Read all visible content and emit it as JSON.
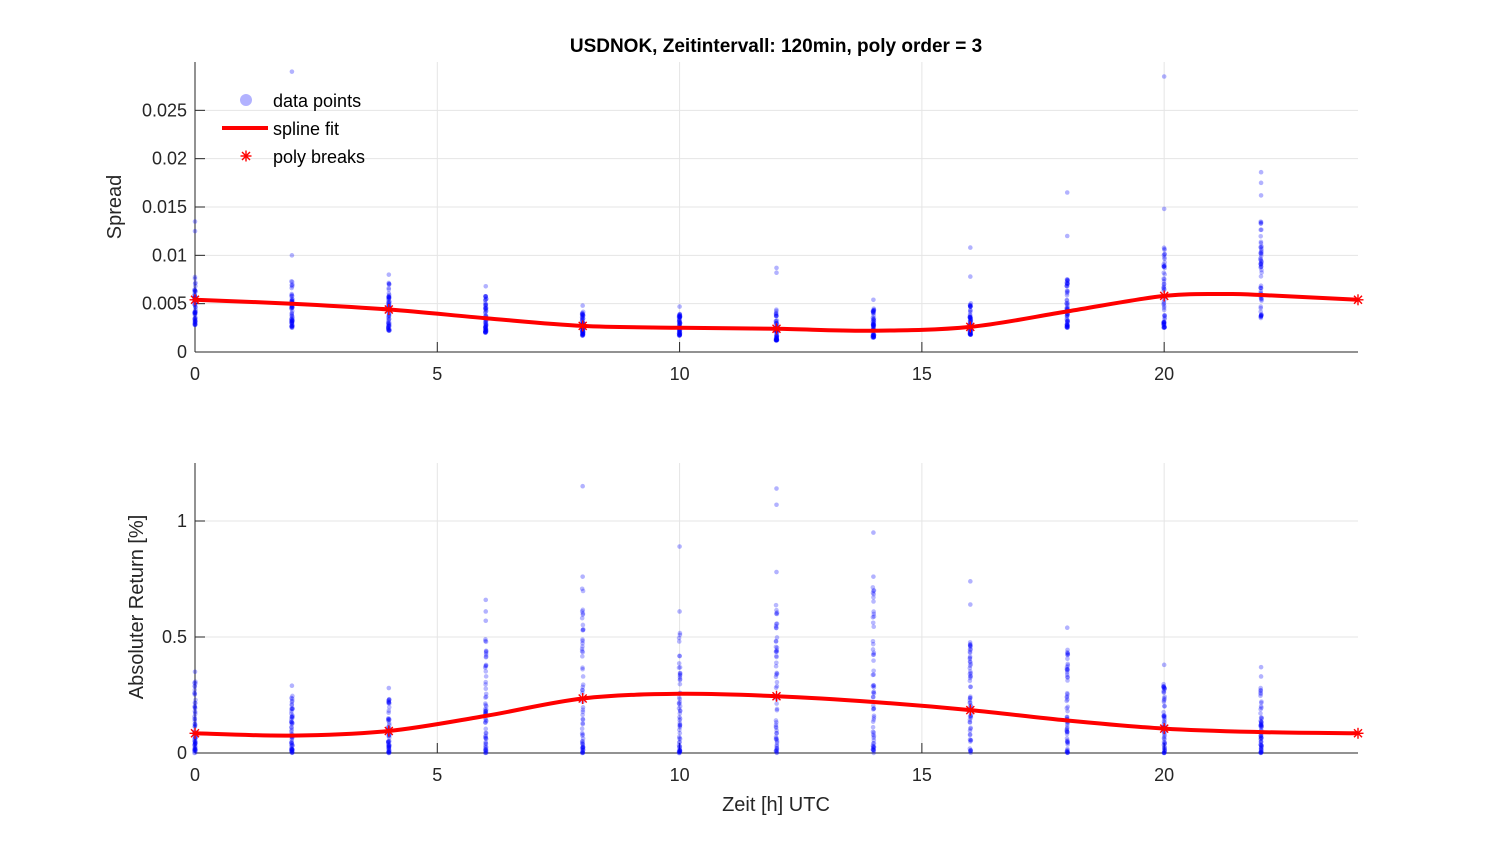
{
  "figure": {
    "title": "USDNOK, Zeitintervall: 120min, poly order = 3"
  },
  "legend": {
    "items": [
      "data points",
      "spline fit",
      "poly breaks"
    ]
  },
  "colors": {
    "points": "#0000ff",
    "fit": "#ff0000",
    "breaks": "#ff0000",
    "grid": "#e5e5e5",
    "axis": "#262626"
  },
  "chart_data": [
    {
      "type": "scatter",
      "title": "USDNOK, Zeitintervall: 120min, poly order = 3",
      "xlabel": "",
      "ylabel": "Spread",
      "xlim": [
        0,
        24
      ],
      "ylim": [
        0,
        0.03
      ],
      "xticks": [
        0,
        5,
        10,
        15,
        20
      ],
      "yticks": [
        0,
        0.005,
        0.01,
        0.015,
        0.02,
        0.025
      ],
      "ytick_labels": [
        "0",
        "0.005",
        "0.01",
        "0.015",
        "0.02",
        "0.025"
      ],
      "grid": true,
      "legend_position": "top-left",
      "series": [
        {
          "name": "data points",
          "type": "scatter",
          "clusters": [
            {
              "x": 0,
              "min": 0.0028,
              "max": 0.0078,
              "outliers": [
                0.0125,
                0.0135
              ]
            },
            {
              "x": 2,
              "min": 0.0025,
              "max": 0.0075,
              "outliers": [
                0.01,
                0.029
              ]
            },
            {
              "x": 4,
              "min": 0.0022,
              "max": 0.0072,
              "outliers": [
                0.008
              ]
            },
            {
              "x": 6,
              "min": 0.002,
              "max": 0.006,
              "outliers": [
                0.0068
              ]
            },
            {
              "x": 8,
              "min": 0.0017,
              "max": 0.0042,
              "outliers": [
                0.0048
              ]
            },
            {
              "x": 10,
              "min": 0.0017,
              "max": 0.004,
              "outliers": [
                0.0047
              ]
            },
            {
              "x": 12,
              "min": 0.0012,
              "max": 0.0045,
              "outliers": [
                0.0082,
                0.0087
              ]
            },
            {
              "x": 14,
              "min": 0.0015,
              "max": 0.0045,
              "outliers": [
                0.0054
              ]
            },
            {
              "x": 16,
              "min": 0.0018,
              "max": 0.0052,
              "outliers": [
                0.0078,
                0.0108
              ]
            },
            {
              "x": 18,
              "min": 0.0025,
              "max": 0.0078,
              "outliers": [
                0.012,
                0.0165
              ]
            },
            {
              "x": 20,
              "min": 0.0025,
              "max": 0.011,
              "outliers": [
                0.0148,
                0.0285
              ]
            },
            {
              "x": 22,
              "min": 0.0035,
              "max": 0.0135,
              "outliers": [
                0.0162,
                0.0175,
                0.0186
              ]
            }
          ]
        },
        {
          "name": "spline fit",
          "type": "line",
          "x": [
            0,
            2,
            4,
            6,
            8,
            10,
            12,
            14,
            16,
            18,
            20,
            21.3,
            22,
            24
          ],
          "y": [
            0.0054,
            0.005,
            0.0044,
            0.0035,
            0.0027,
            0.0025,
            0.0024,
            0.0022,
            0.0026,
            0.0042,
            0.0058,
            0.006,
            0.0059,
            0.0054
          ]
        },
        {
          "name": "poly breaks",
          "type": "scatter",
          "x": [
            0,
            4,
            8,
            12,
            16,
            20,
            24
          ],
          "y": [
            0.0054,
            0.0044,
            0.0027,
            0.0024,
            0.0026,
            0.0058,
            0.0054
          ]
        }
      ]
    },
    {
      "type": "scatter",
      "title": "",
      "xlabel": "Zeit [h] UTC",
      "ylabel": "Absoluter Return [%]",
      "xlim": [
        0,
        24
      ],
      "ylim": [
        0,
        1.25
      ],
      "xticks": [
        0,
        5,
        10,
        15,
        20
      ],
      "yticks": [
        0,
        0.5,
        1
      ],
      "ytick_labels": [
        "0",
        "0.5",
        "1"
      ],
      "grid": true,
      "series": [
        {
          "name": "data points",
          "type": "scatter",
          "clusters": [
            {
              "x": 0,
              "min": 0,
              "max": 0.31,
              "outliers": [
                0.35
              ]
            },
            {
              "x": 2,
              "min": 0,
              "max": 0.26,
              "outliers": [
                0.29
              ]
            },
            {
              "x": 4,
              "min": 0,
              "max": 0.24,
              "outliers": [
                0.28
              ]
            },
            {
              "x": 6,
              "min": 0,
              "max": 0.5,
              "outliers": [
                0.57,
                0.61,
                0.66
              ]
            },
            {
              "x": 8,
              "min": 0,
              "max": 0.72,
              "outliers": [
                0.76,
                1.15
              ]
            },
            {
              "x": 10,
              "min": 0,
              "max": 0.53,
              "outliers": [
                0.61,
                0.89
              ]
            },
            {
              "x": 12,
              "min": 0,
              "max": 0.65,
              "outliers": [
                0.78,
                1.07,
                1.14
              ]
            },
            {
              "x": 14,
              "min": 0,
              "max": 0.74,
              "outliers": [
                0.76,
                0.95
              ]
            },
            {
              "x": 16,
              "min": 0,
              "max": 0.48,
              "outliers": [
                0.64,
                0.74
              ]
            },
            {
              "x": 18,
              "min": 0,
              "max": 0.46,
              "outliers": [
                0.54
              ]
            },
            {
              "x": 20,
              "min": 0,
              "max": 0.3,
              "outliers": [
                0.38
              ]
            },
            {
              "x": 22,
              "min": 0,
              "max": 0.28,
              "outliers": [
                0.33,
                0.37
              ]
            }
          ]
        },
        {
          "name": "spline fit",
          "type": "line",
          "x": [
            0,
            2,
            4,
            6,
            8,
            10,
            12,
            14,
            16,
            18,
            20,
            22,
            24
          ],
          "y": [
            0.085,
            0.075,
            0.095,
            0.16,
            0.235,
            0.255,
            0.245,
            0.22,
            0.185,
            0.14,
            0.105,
            0.09,
            0.085
          ]
        },
        {
          "name": "poly breaks",
          "type": "scatter",
          "x": [
            0,
            4,
            8,
            12,
            16,
            20,
            24
          ],
          "y": [
            0.085,
            0.095,
            0.235,
            0.245,
            0.185,
            0.105,
            0.085
          ]
        }
      ]
    }
  ]
}
